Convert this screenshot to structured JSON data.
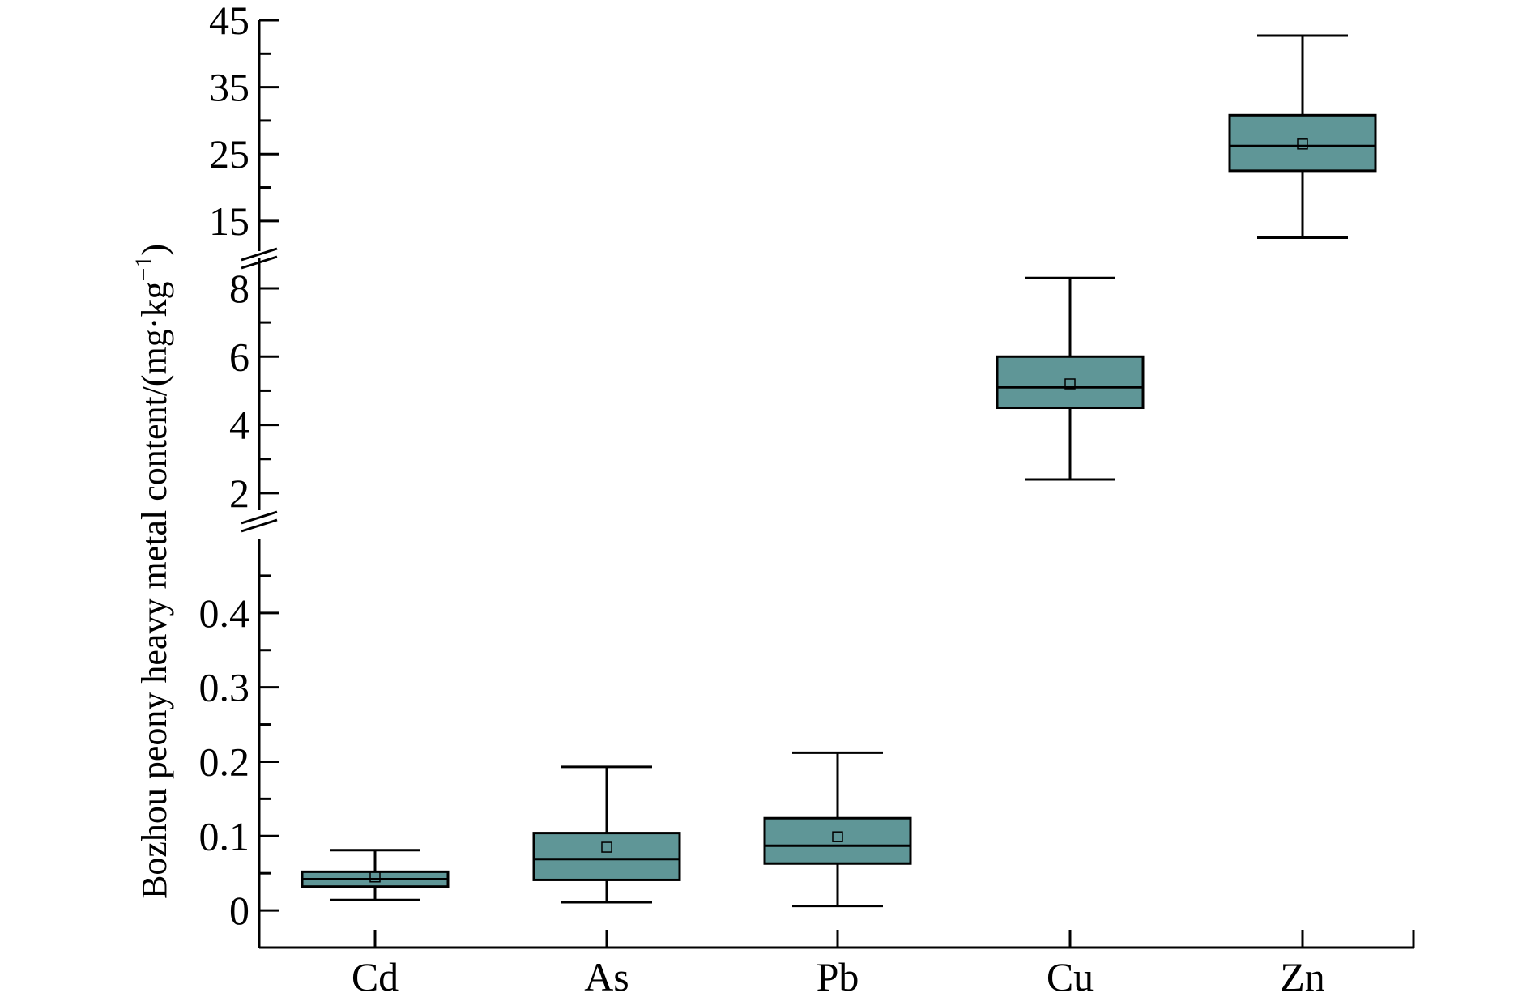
{
  "chart_data": {
    "type": "box",
    "ylabel": "Bozhou peony heavy metal content/(mg·kg",
    "ylabel_sup": "−1",
    "ylabel_close": ")",
    "categories": [
      "Cd",
      "As",
      "Pb",
      "Cu",
      "Zn"
    ],
    "box_color": "#5f9697",
    "y_axis_segments": [
      {
        "range": [
          -0.05,
          0.5
        ],
        "ticks": [
          "0",
          "0.1",
          "0.2",
          "0.3",
          "0.4"
        ],
        "tick_values": [
          0,
          0.1,
          0.2,
          0.3,
          0.4
        ],
        "minor": [
          0.05,
          0.15,
          0.25,
          0.35,
          0.45
        ]
      },
      {
        "range": [
          1.5,
          8.9
        ],
        "ticks": [
          "2",
          "4",
          "6",
          "8"
        ],
        "tick_values": [
          2,
          4,
          6,
          8
        ],
        "minor": [
          3,
          5,
          7
        ]
      },
      {
        "range": [
          10.5,
          45
        ],
        "ticks": [
          "15",
          "25",
          "35",
          "45"
        ],
        "tick_values": [
          15,
          25,
          35,
          45
        ],
        "minor": [
          20,
          30,
          40
        ]
      }
    ],
    "boxes": [
      {
        "category": "Cd",
        "min": 0.014,
        "q1": 0.032,
        "median": 0.042,
        "q3": 0.052,
        "max": 0.081,
        "mean": 0.045
      },
      {
        "category": "As",
        "min": 0.011,
        "q1": 0.041,
        "median": 0.069,
        "q3": 0.104,
        "max": 0.193,
        "mean": 0.085
      },
      {
        "category": "Pb",
        "min": 0.006,
        "q1": 0.063,
        "median": 0.087,
        "q3": 0.124,
        "max": 0.212,
        "mean": 0.099
      },
      {
        "category": "Cu",
        "min": 2.4,
        "q1": 4.5,
        "median": 5.1,
        "q3": 6.0,
        "max": 8.3,
        "mean": 5.2
      },
      {
        "category": "Zn",
        "min": 12.5,
        "q1": 22.5,
        "median": 26.2,
        "q3": 30.8,
        "max": 42.7,
        "mean": 26.5
      }
    ]
  }
}
